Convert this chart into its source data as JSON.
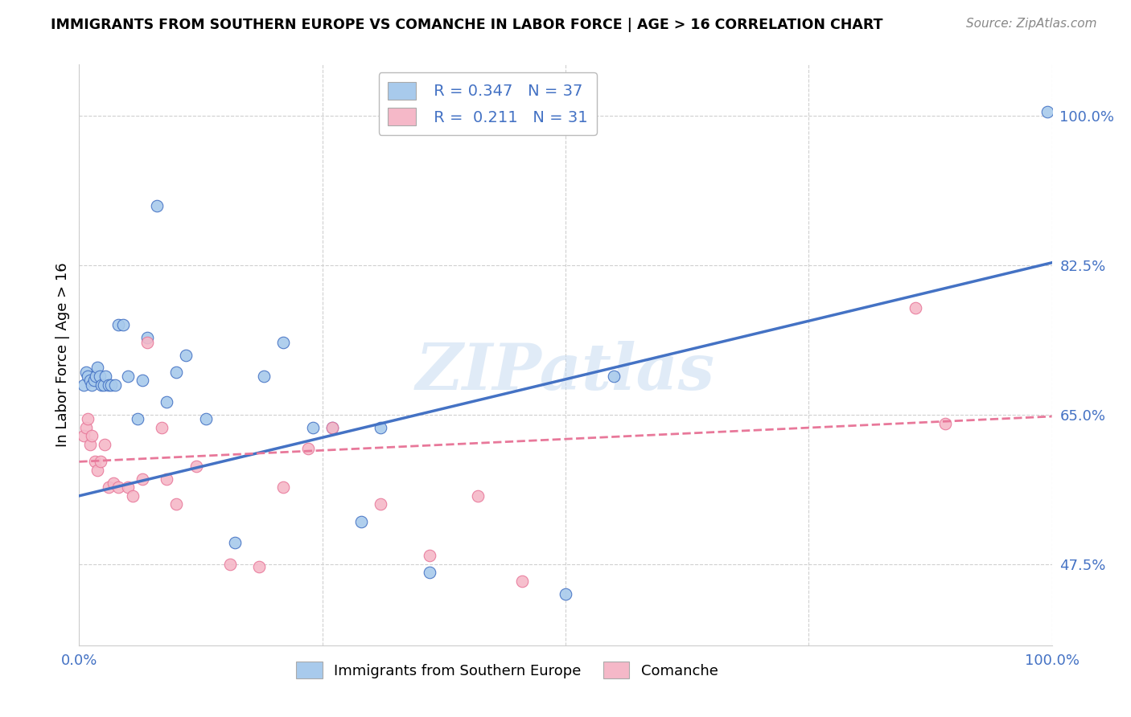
{
  "title": "IMMIGRANTS FROM SOUTHERN EUROPE VS COMANCHE IN LABOR FORCE | AGE > 16 CORRELATION CHART",
  "source": "Source: ZipAtlas.com",
  "ylabel": "In Labor Force | Age > 16",
  "xlim": [
    0,
    1
  ],
  "ylim": [
    0.38,
    1.06
  ],
  "yticks": [
    0.475,
    0.65,
    0.825,
    1.0
  ],
  "ytick_labels": [
    "47.5%",
    "65.0%",
    "82.5%",
    "100.0%"
  ],
  "xticks": [
    0.0,
    0.25,
    0.5,
    0.75,
    1.0
  ],
  "xtick_labels": [
    "0.0%",
    "",
    "",
    "",
    "100.0%"
  ],
  "blue_color": "#A8CAEC",
  "pink_color": "#F5B8C8",
  "blue_line_color": "#4472C4",
  "pink_line_color": "#E8789A",
  "blue_R": 0.347,
  "blue_N": 37,
  "pink_R": 0.211,
  "pink_N": 31,
  "blue_x": [
    0.005,
    0.007,
    0.009,
    0.011,
    0.013,
    0.015,
    0.017,
    0.019,
    0.021,
    0.023,
    0.025,
    0.027,
    0.03,
    0.033,
    0.037,
    0.04,
    0.045,
    0.05,
    0.06,
    0.065,
    0.07,
    0.08,
    0.09,
    0.1,
    0.11,
    0.13,
    0.16,
    0.19,
    0.21,
    0.24,
    0.26,
    0.29,
    0.31,
    0.36,
    0.5,
    0.55,
    0.995
  ],
  "blue_y": [
    0.685,
    0.7,
    0.695,
    0.69,
    0.685,
    0.69,
    0.695,
    0.705,
    0.695,
    0.685,
    0.685,
    0.695,
    0.685,
    0.685,
    0.685,
    0.755,
    0.755,
    0.695,
    0.645,
    0.69,
    0.74,
    0.895,
    0.665,
    0.7,
    0.72,
    0.645,
    0.5,
    0.695,
    0.735,
    0.635,
    0.635,
    0.525,
    0.635,
    0.465,
    0.44,
    0.695,
    1.005
  ],
  "pink_x": [
    0.005,
    0.007,
    0.009,
    0.011,
    0.013,
    0.016,
    0.019,
    0.022,
    0.026,
    0.03,
    0.035,
    0.04,
    0.05,
    0.055,
    0.065,
    0.07,
    0.085,
    0.09,
    0.1,
    0.12,
    0.155,
    0.185,
    0.21,
    0.235,
    0.26,
    0.31,
    0.36,
    0.41,
    0.455,
    0.86,
    0.89
  ],
  "pink_y": [
    0.625,
    0.635,
    0.645,
    0.615,
    0.625,
    0.595,
    0.585,
    0.595,
    0.615,
    0.565,
    0.57,
    0.565,
    0.565,
    0.555,
    0.575,
    0.735,
    0.635,
    0.575,
    0.545,
    0.59,
    0.475,
    0.472,
    0.565,
    0.61,
    0.635,
    0.545,
    0.485,
    0.555,
    0.455,
    0.775,
    0.64
  ],
  "watermark": "ZIPatlas",
  "background_color": "#ffffff",
  "grid_color": "#d0d0d0",
  "blue_trend_x0": 0.0,
  "blue_trend_y0": 0.555,
  "blue_trend_x1": 1.0,
  "blue_trend_y1": 0.828,
  "pink_trend_x0": 0.0,
  "pink_trend_y0": 0.595,
  "pink_trend_x1": 1.0,
  "pink_trend_y1": 0.648
}
